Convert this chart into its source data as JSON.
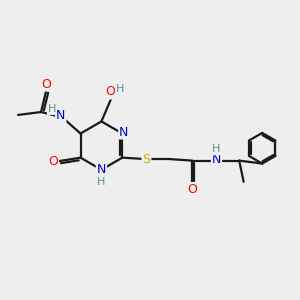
{
  "background_color": "#eeeeee",
  "atom_colors": {
    "C": "#000000",
    "N": "#0000cc",
    "O": "#ff0000",
    "S": "#ccaa00",
    "H": "#5a9090"
  },
  "bond_color": "#1a1a1a",
  "bond_width": 1.6,
  "figsize": [
    3.0,
    3.0
  ],
  "dpi": 100
}
